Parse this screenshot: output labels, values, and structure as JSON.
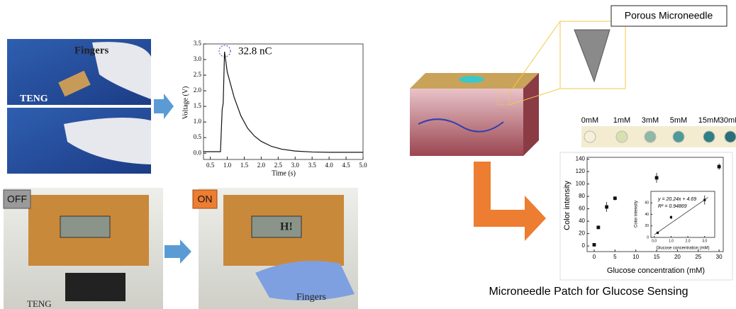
{
  "panels": {
    "top_photo_labels": [
      "Fingers",
      "TENG"
    ],
    "off_label": "OFF",
    "on_label": "ON",
    "lcd_text": "H!",
    "bottom_photo_labels": [
      "TENG",
      "Fingers"
    ],
    "callout": "Porous Microneedle",
    "concentrations": [
      "0mM",
      "1mM",
      "3mM",
      "5mM",
      "15mM",
      "30mM"
    ],
    "caption": "Microneedle Patch for Glucose Sensing"
  },
  "chart_data": [
    {
      "type": "line",
      "xlabel": "Time (s)",
      "ylabel": "Voltage (V)",
      "annotation": "32.8 nC",
      "x": [
        0.3,
        0.8,
        0.85,
        0.88,
        0.92,
        1.0,
        1.2,
        1.4,
        1.6,
        1.8,
        2.0,
        2.3,
        2.6,
        3.0,
        3.5,
        4.0,
        5.0
      ],
      "series": [
        {
          "name": "Voltage",
          "color": "#111111",
          "values": [
            0.05,
            0.05,
            1.4,
            1.6,
            3.25,
            2.6,
            1.8,
            1.2,
            0.8,
            0.55,
            0.38,
            0.22,
            0.13,
            0.07,
            0.04,
            0.03,
            0.03
          ]
        }
      ],
      "xlim": [
        0.3,
        5.0
      ],
      "ylim": [
        -0.2,
        3.5
      ],
      "xticks": [
        {
          "value": 0.5,
          "label": "0.5"
        },
        {
          "value": 1,
          "label": "1.0"
        },
        {
          "value": 1.5,
          "label": "1.5"
        },
        {
          "value": 2,
          "label": "2.0"
        },
        {
          "value": 2.5,
          "label": "2.5"
        },
        {
          "value": 3,
          "label": "3.0"
        },
        {
          "value": 3.5,
          "label": "3.5"
        },
        {
          "value": 4,
          "label": "4.0"
        },
        {
          "value": 4.5,
          "label": "4.5"
        },
        {
          "value": 5,
          "label": "5.0"
        }
      ],
      "yticks": [
        {
          "value": 0,
          "label": "0.0"
        },
        0.5,
        {
          "value": 1,
          "label": "1.0"
        },
        1.5,
        {
          "value": 2,
          "label": "2.0"
        },
        2.5,
        {
          "value": 3,
          "label": "3.0"
        },
        3.5
      ]
    },
    {
      "type": "scatter",
      "xlabel": "Glucose concentration (mM)",
      "ylabel": "Color intensity",
      "x": [
        0,
        1,
        3,
        5,
        15,
        30
      ],
      "series": [
        {
          "name": "Color intensity",
          "color": "#111111",
          "values": [
            2,
            30,
            63,
            77,
            110,
            128
          ],
          "errors": [
            2,
            3,
            8,
            3,
            8,
            5
          ]
        }
      ],
      "xlim": [
        -1.7,
        31
      ],
      "ylim": [
        -9,
        143
      ],
      "xticks": [
        0,
        5,
        10,
        15,
        20,
        25,
        30
      ],
      "yticks": [
        0,
        20,
        40,
        60,
        80,
        100,
        120,
        140
      ]
    },
    {
      "type": "scatter",
      "xlabel": "Glucose concentration (mM)",
      "ylabel": "Color intensity",
      "equation": "y = 20.24x + 4.69",
      "r2": "R² = 0.94869",
      "x": [
        0.2,
        1,
        3
      ],
      "series": [
        {
          "name": "Color intensity",
          "color": "#111111",
          "values": [
            8,
            35,
            65
          ],
          "errors": [
            2,
            3,
            8
          ]
        }
      ],
      "fit": {
        "x": [
          0,
          3.2
        ],
        "values": [
          4.69,
          69.5
        ],
        "color": "#333333"
      },
      "xlim": [
        -0.2,
        3.6
      ],
      "ylim": [
        0,
        80
      ],
      "xticks": [
        {
          "value": 0,
          "label": "0.0"
        },
        {
          "value": 1,
          "label": "1.0"
        },
        {
          "value": 2,
          "label": "2.0"
        },
        {
          "value": 3,
          "label": "3.0"
        }
      ],
      "yticks": [
        0,
        20,
        40,
        60
      ]
    }
  ]
}
